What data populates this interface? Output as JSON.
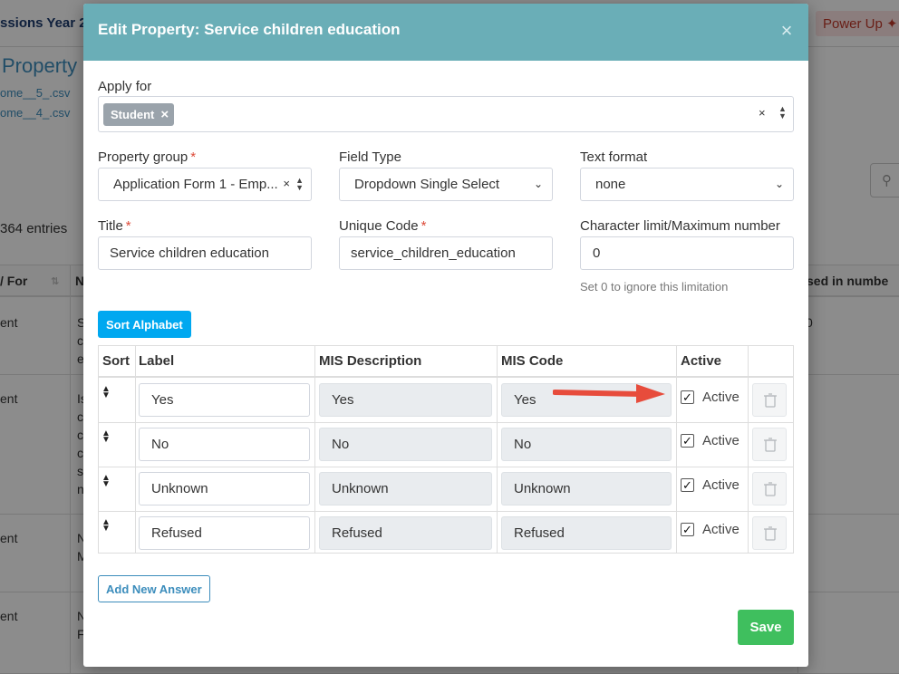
{
  "background": {
    "brand": "ssions Year 2",
    "power_up": "Power Up",
    "heading": "Property",
    "links": [
      "ome__5_.csv",
      "ome__4_.csv"
    ],
    "entries": "364 entries",
    "columns": {
      "apply_for": "/ For",
      "name": "N",
      "used_in": "sed in numbe"
    },
    "rows": [
      {
        "apply": "ent",
        "name": [
          "S",
          "c",
          "e"
        ],
        "extra": "0"
      },
      {
        "apply": "ent",
        "name": [
          "Is",
          "c",
          "c",
          "c",
          "s",
          "n"
        ],
        "extra": ""
      },
      {
        "apply": "ent",
        "name": [
          "N",
          "M"
        ],
        "extra": ""
      },
      {
        "apply": "ent",
        "name": [
          "N",
          "F"
        ],
        "extra": ""
      }
    ]
  },
  "modal": {
    "title": "Edit Property: Service children education",
    "close_icon": "×",
    "apply_for": {
      "label": "Apply for",
      "tags": [
        "Student"
      ],
      "tag_remove": "×",
      "clear": "×"
    },
    "property_group": {
      "label": "Property group",
      "value": "Application Form 1 - Emp...",
      "clear": "×"
    },
    "field_type": {
      "label": "Field Type",
      "value": "Dropdown Single Select"
    },
    "text_format": {
      "label": "Text format",
      "value": "none"
    },
    "title_field": {
      "label": "Title",
      "value": "Service children education"
    },
    "unique_code": {
      "label": "Unique Code",
      "value": "service_children_education"
    },
    "char_limit": {
      "label": "Character limit/Maximum number",
      "value": "0",
      "hint": "Set 0 to ignore this limitation"
    },
    "required_mark": "*",
    "sort_button": "Sort Alphabet",
    "answers_table": {
      "headers": {
        "sort": "Sort",
        "label": "Label",
        "mis_description": "MIS Description",
        "mis_code": "MIS Code",
        "active": "Active"
      },
      "rows": [
        {
          "label": "Yes",
          "mis_description": "Yes",
          "mis_code": "Yes",
          "active": true,
          "active_label": "Active"
        },
        {
          "label": "No",
          "mis_description": "No",
          "mis_code": "No",
          "active": true,
          "active_label": "Active"
        },
        {
          "label": "Unknown",
          "mis_description": "Unknown",
          "mis_code": "Unknown",
          "active": true,
          "active_label": "Active"
        },
        {
          "label": "Refused",
          "mis_description": "Refused",
          "mis_code": "Refused",
          "active": true,
          "active_label": "Active"
        }
      ]
    },
    "add_button": "Add New Answer",
    "save_button": "Save"
  },
  "colors": {
    "header": "#6aaeb7",
    "sort_button": "#00a8f0",
    "save_button": "#3fbf5e",
    "annotation_arrow": "#e74c3c"
  },
  "icons": {
    "close": "close-icon",
    "sort": "sort-handle-icon",
    "trash": "trash-icon",
    "arrow": "annotation-arrow"
  }
}
